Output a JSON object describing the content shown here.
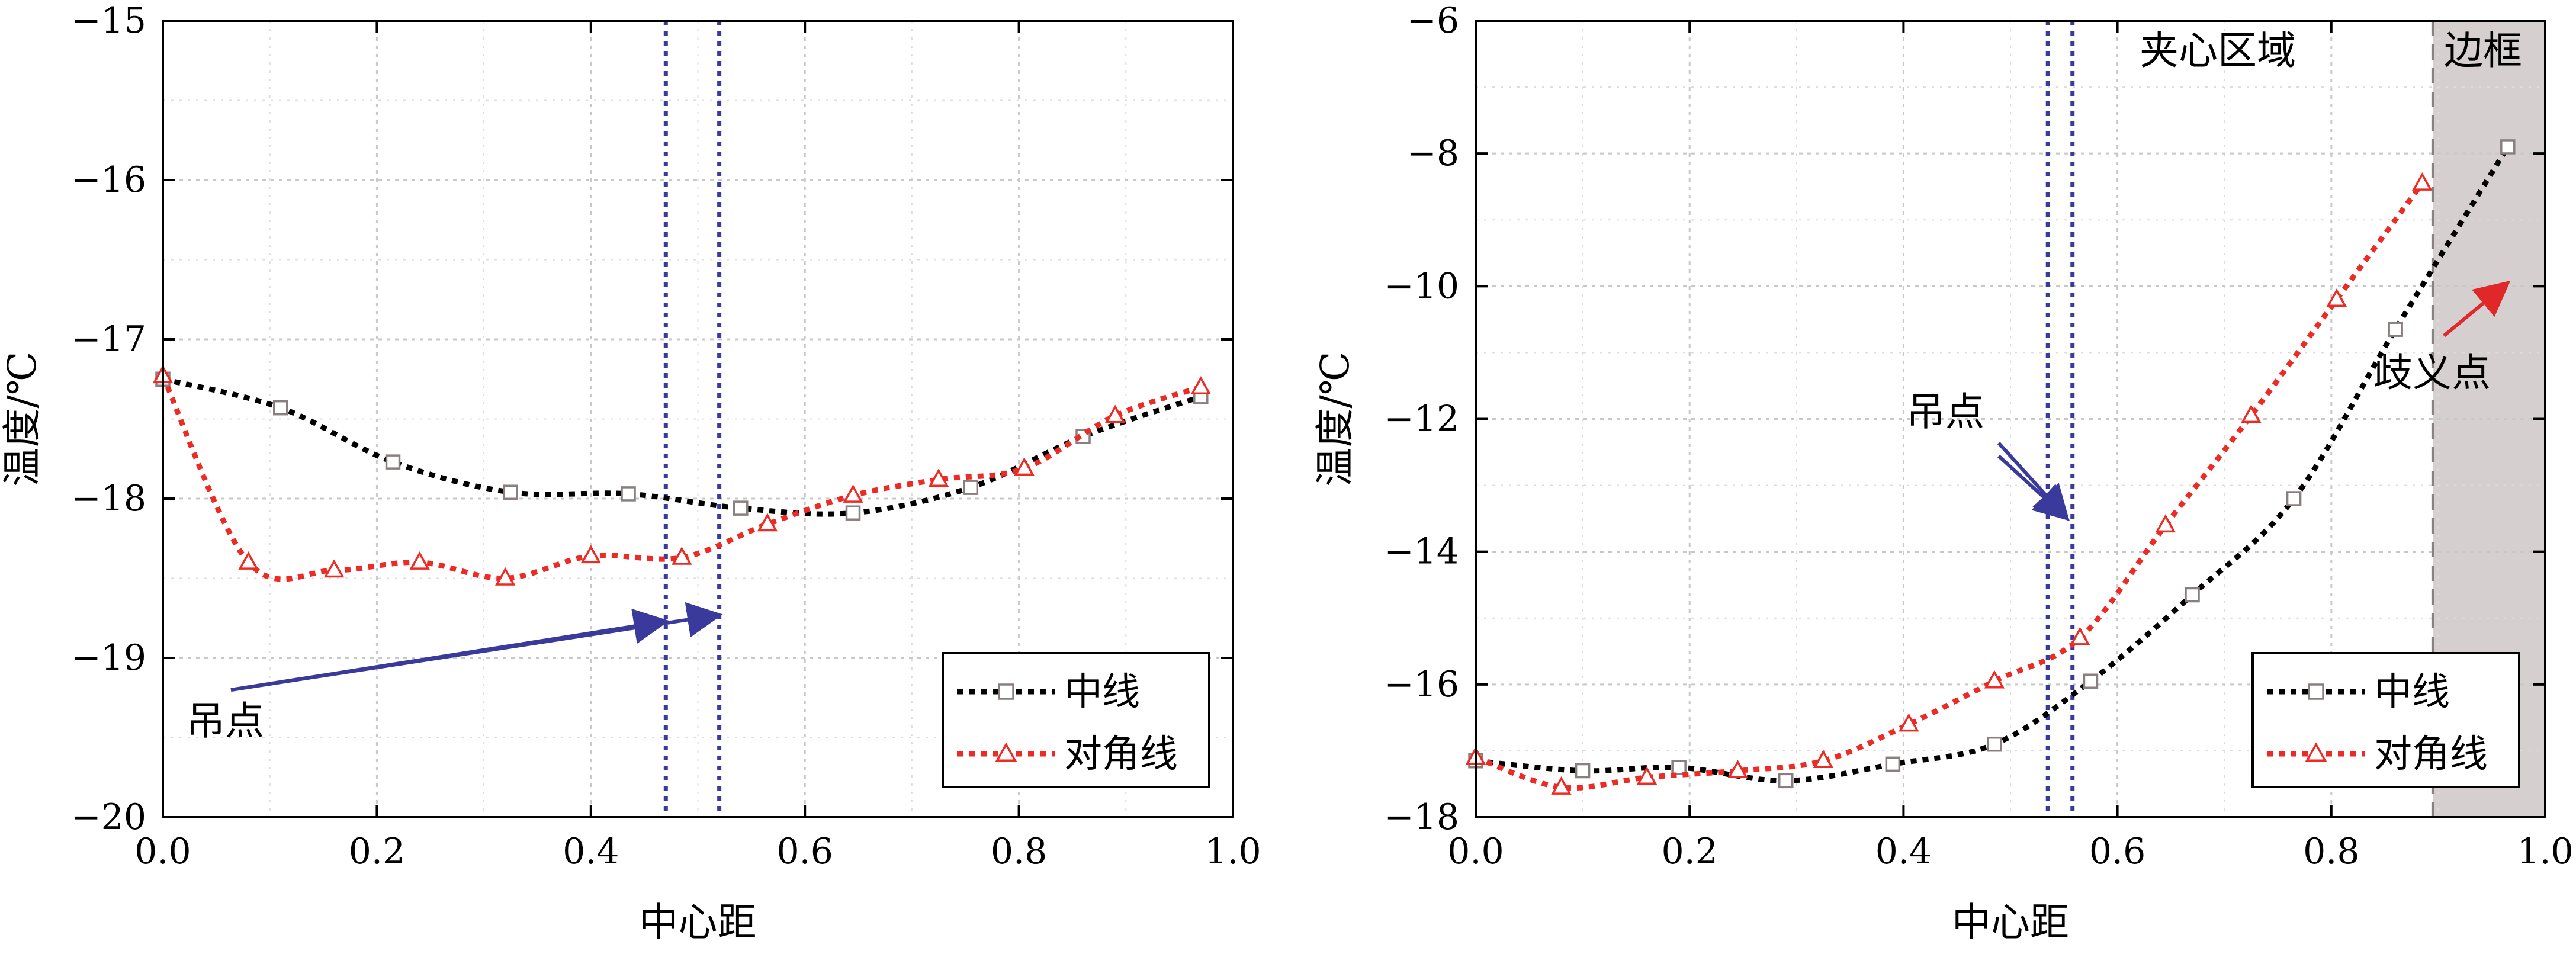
{
  "chart_data": [
    {
      "type": "line",
      "xlabel": "中心距",
      "ylabel": "温度/℃",
      "xlim": [
        0.0,
        1.0
      ],
      "ylim": [
        -20,
        -15
      ],
      "x_ticks": [
        0.0,
        0.2,
        0.4,
        0.6,
        0.8,
        1.0
      ],
      "x_tick_labels": [
        "0.0",
        "0.2",
        "0.4",
        "0.6",
        "0.8",
        "1.0"
      ],
      "y_ticks": [
        -20,
        -19,
        -18,
        -17,
        -16,
        -15
      ],
      "y_tick_labels": [
        "−20",
        "−19",
        "−18",
        "−17",
        "−16",
        "−15"
      ],
      "grid": true,
      "legend_position": "bottom-right",
      "series": [
        {
          "name": "中线",
          "marker": "square",
          "line_color": "#000000",
          "marker_color": "#8a7f7f",
          "x": [
            0.0,
            0.11,
            0.215,
            0.325,
            0.435,
            0.54,
            0.645,
            0.755,
            0.86,
            0.97
          ],
          "y": [
            -17.25,
            -17.43,
            -17.77,
            -17.96,
            -17.97,
            -18.06,
            -18.09,
            -17.93,
            -17.61,
            -17.36
          ]
        },
        {
          "name": "对角线",
          "marker": "triangle",
          "line_color": "#ee2a24",
          "marker_color": "#ee2a24",
          "x": [
            0.0,
            0.08,
            0.16,
            0.24,
            0.32,
            0.4,
            0.485,
            0.565,
            0.645,
            0.725,
            0.805,
            0.89,
            0.97
          ],
          "y": [
            -17.23,
            -18.4,
            -18.45,
            -18.4,
            -18.5,
            -18.36,
            -18.37,
            -18.16,
            -17.98,
            -17.88,
            -17.81,
            -17.48,
            -17.3
          ]
        }
      ],
      "vlines": [
        {
          "x": 0.47,
          "style": "dotted",
          "color": "#3a3a9c"
        },
        {
          "x": 0.52,
          "style": "dotted",
          "color": "#3a3a9c"
        }
      ],
      "annotations": [
        {
          "text": "吊点",
          "x": 0.42,
          "y": -19.4,
          "arrows_to": [
            [
              0.47,
              -18.77
            ],
            [
              0.52,
              -18.73
            ]
          ],
          "color": "#3a3a9c"
        }
      ]
    },
    {
      "type": "line",
      "xlabel": "中心距",
      "ylabel": "温度/℃",
      "xlim": [
        0.0,
        1.0
      ],
      "ylim": [
        -18,
        -6
      ],
      "x_ticks": [
        0.0,
        0.2,
        0.4,
        0.6,
        0.8,
        1.0
      ],
      "x_tick_labels": [
        "0.0",
        "0.2",
        "0.4",
        "0.6",
        "0.8",
        "1.0"
      ],
      "y_ticks": [
        -18,
        -16,
        -14,
        -12,
        -10,
        -8,
        -6
      ],
      "y_tick_labels": [
        "−18",
        "−16",
        "−14",
        "−12",
        "−10",
        "−8",
        "−6"
      ],
      "grid": true,
      "legend_position": "bottom-right",
      "series": [
        {
          "name": "中线",
          "marker": "square",
          "line_color": "#000000",
          "marker_color": "#8a7f7f",
          "x": [
            0.0,
            0.1,
            0.19,
            0.29,
            0.39,
            0.485,
            0.575,
            0.67,
            0.765,
            0.86,
            0.965
          ],
          "y": [
            -17.15,
            -17.3,
            -17.25,
            -17.45,
            -17.2,
            -16.9,
            -15.95,
            -14.65,
            -13.2,
            -10.65,
            -7.9
          ]
        },
        {
          "name": "对角线",
          "marker": "triangle",
          "line_color": "#ee2a24",
          "marker_color": "#ee2a24",
          "x": [
            0.0,
            0.08,
            0.16,
            0.245,
            0.325,
            0.405,
            0.485,
            0.565,
            0.645,
            0.725,
            0.805,
            0.885
          ],
          "y": [
            -17.1,
            -17.55,
            -17.4,
            -17.3,
            -17.15,
            -16.6,
            -15.95,
            -15.3,
            -13.6,
            -11.95,
            -10.2,
            -8.45
          ]
        }
      ],
      "vlines": [
        {
          "x": 0.535,
          "style": "dotted",
          "color": "#3a3a9c"
        },
        {
          "x": 0.558,
          "style": "dotted",
          "color": "#3a3a9c"
        },
        {
          "x": 0.895,
          "style": "dashed",
          "color": "#8a8080"
        }
      ],
      "shaded_region": {
        "x_from": 0.895,
        "x_to": 1.0,
        "color": "#d6cfcf"
      },
      "region_labels": [
        "夹心区域",
        "边框"
      ],
      "annotations": [
        {
          "text": "吊点",
          "x": 0.485,
          "y": -12.0,
          "arrows_to": [
            [
              0.553,
              -13.5
            ],
            [
              0.553,
              -13.5
            ]
          ],
          "color": "#3a3a9c"
        },
        {
          "text": "歧义点",
          "x": 0.935,
          "y": -11.5,
          "arrows_to": [
            [
              0.965,
              -9.95
            ]
          ],
          "color": "#ee2a24"
        }
      ]
    }
  ]
}
